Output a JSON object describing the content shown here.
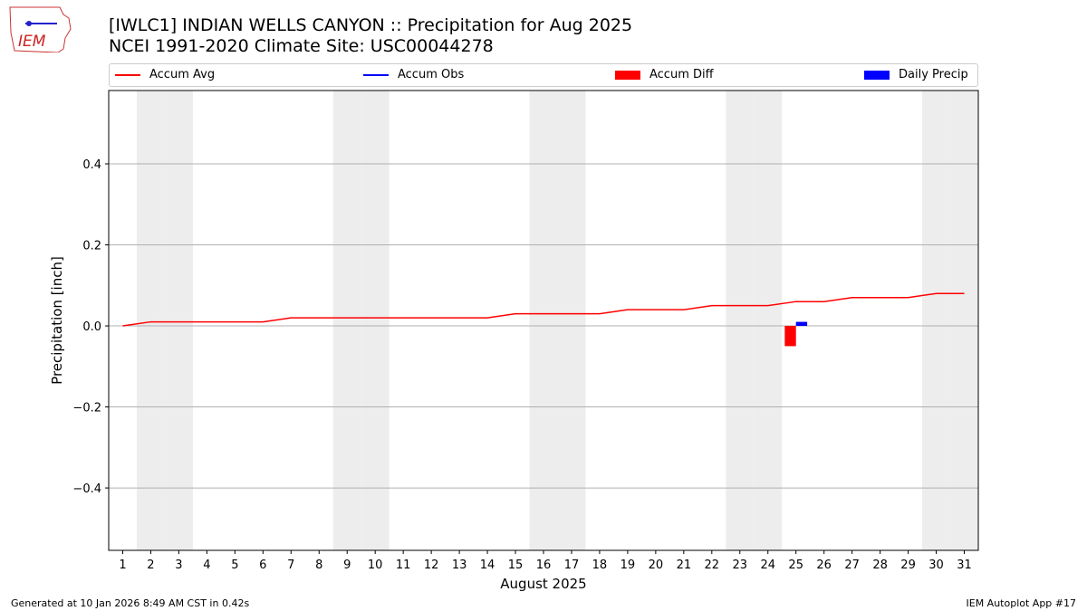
{
  "title": {
    "line1": "[IWLC1] INDIAN WELLS CANYON :: Precipitation for Aug 2025",
    "line2": "NCEI 1991-2020 Climate Site: USC00044278"
  },
  "logo_text": "IEM",
  "footer": {
    "left": "Generated at 10 Jan 2026 8:49 AM CST in 0.42s",
    "right": "IEM Autoplot App #17"
  },
  "colors": {
    "avg": "#ff0000",
    "obs": "#0000ff",
    "diff": "#ff0000",
    "daily": "#0000ff",
    "weekend": "#ededed"
  },
  "chart_data": {
    "type": "line",
    "xlabel": "August 2025",
    "ylabel": "Precipitation [inch]",
    "xlim": [
      0.5,
      31.5
    ],
    "ylim": [
      -0.554,
      0.581
    ],
    "yticks": [
      -0.4,
      -0.2,
      0.0,
      0.2,
      0.4
    ],
    "ytick_labels": [
      "−0.4",
      "−0.2",
      "0.0",
      "0.2",
      "0.4"
    ],
    "grid": "y",
    "legend": [
      "Accum Avg",
      "Accum Obs",
      "Accum Diff",
      "Daily Precip"
    ],
    "legend_placement": "top",
    "x": [
      1,
      2,
      3,
      4,
      5,
      6,
      7,
      8,
      9,
      10,
      11,
      12,
      13,
      14,
      15,
      16,
      17,
      18,
      19,
      20,
      21,
      22,
      23,
      24,
      25,
      26,
      27,
      28,
      29,
      30,
      31
    ],
    "weekend_days": [
      2,
      3,
      9,
      10,
      16,
      17,
      23,
      24,
      30,
      31
    ],
    "accum_avg": [
      0,
      0.01,
      0.01,
      0.01,
      0.01,
      0.01,
      0.02,
      0.02,
      0.02,
      0.02,
      0.02,
      0.02,
      0.02,
      0.02,
      0.03,
      0.03,
      0.03,
      0.03,
      0.04,
      0.04,
      0.04,
      0.05,
      0.05,
      0.05,
      0.06,
      0.06,
      0.07,
      0.07,
      0.07,
      0.08,
      0.08
    ],
    "accum_diff": [
      {
        "day": 25,
        "value": -0.05
      }
    ],
    "daily_precip": [
      {
        "day": 25,
        "value": 0.01
      }
    ]
  }
}
